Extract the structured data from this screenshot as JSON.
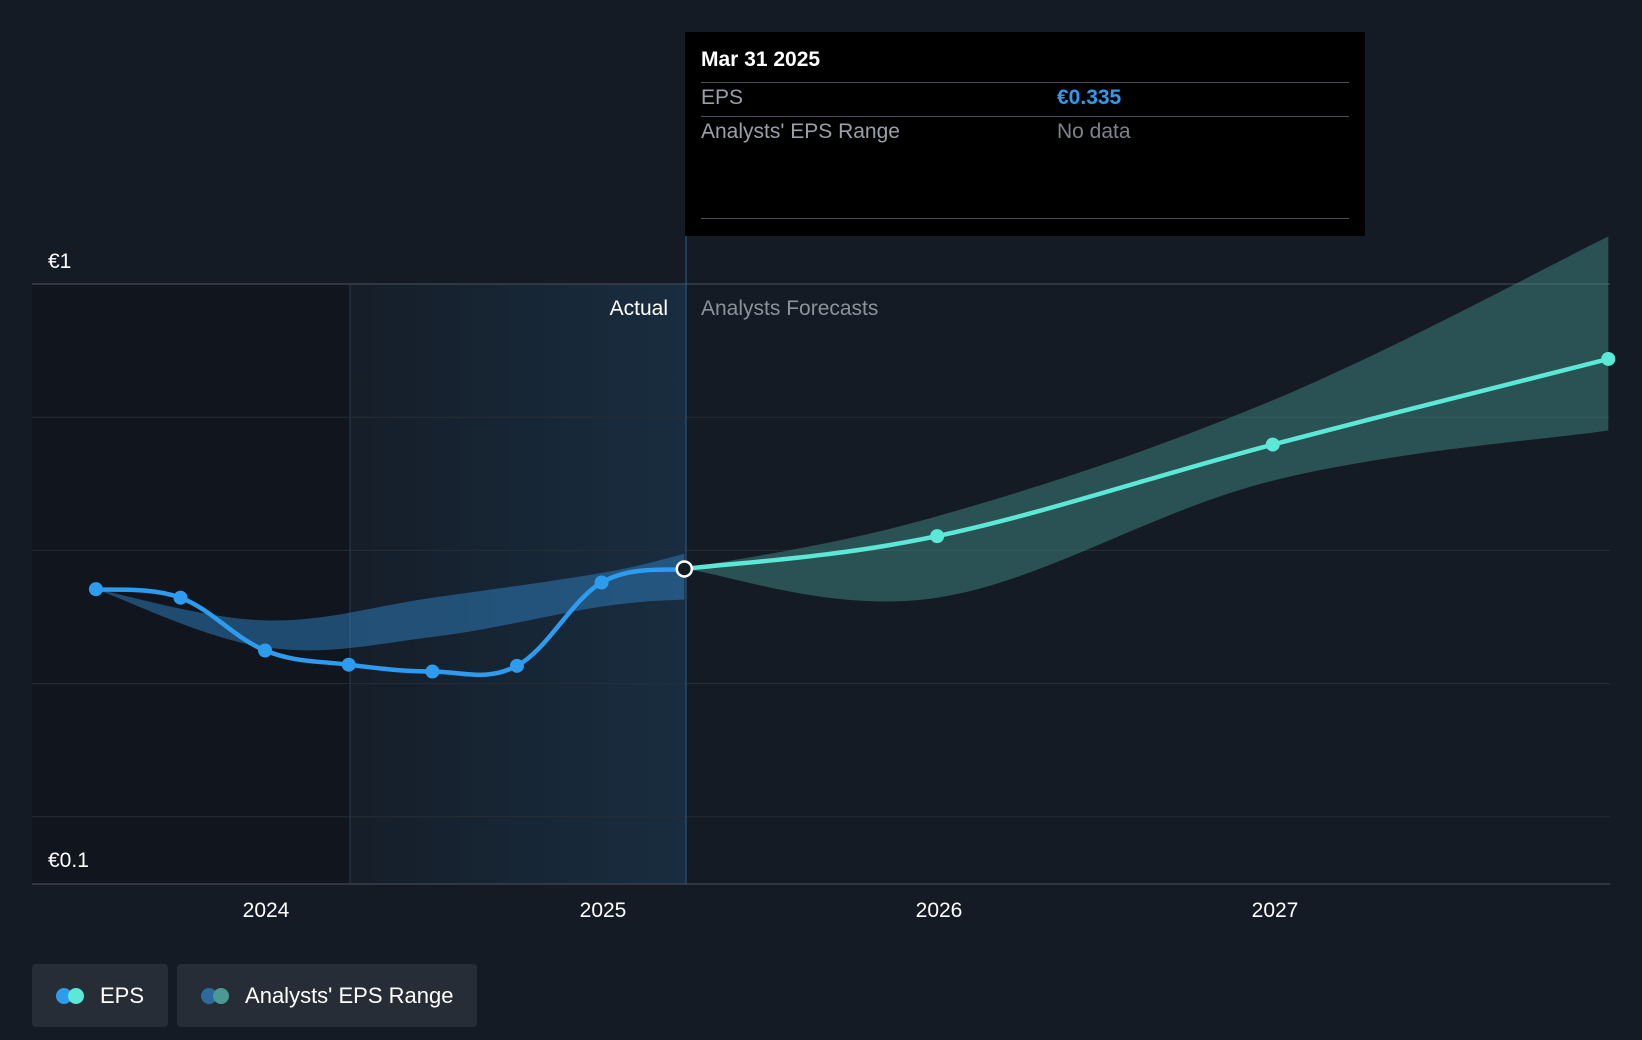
{
  "colors": {
    "background": "#151b24",
    "actual": "#2d9cee",
    "forecast": "#5ce8d6",
    "range_actual": "#2d78b4",
    "range_forecast": "#3f8a84"
  },
  "tooltip": {
    "date": "Mar 31 2025",
    "eps_label": "EPS",
    "eps_value": "€0.335",
    "range_label": "Analysts' EPS Range",
    "range_value": "No data"
  },
  "legend": {
    "items": [
      {
        "label": "EPS",
        "icon": "eps-dot-icon"
      },
      {
        "label": "Analysts' EPS Range",
        "icon": "range-dot-icon"
      }
    ]
  },
  "chart_data": {
    "type": "line",
    "title": "",
    "xlabel": "",
    "ylabel": "",
    "y_scale": "log",
    "ylim": [
      0.1,
      1
    ],
    "y_tick_labels": [
      "€1",
      "€0.1"
    ],
    "x_tick_labels": [
      "2024",
      "2025",
      "2026",
      "2027"
    ],
    "region_labels": {
      "actual": "Actual",
      "forecast": "Analysts Forecasts"
    },
    "series": [
      {
        "name": "EPS",
        "segment": "actual",
        "x": [
          "2023-06-30",
          "2023-09-30",
          "2023-12-31",
          "2024-03-31",
          "2024-06-30",
          "2024-09-30",
          "2024-12-31",
          "2025-03-31"
        ],
        "y": [
          0.31,
          0.3,
          0.245,
          0.232,
          0.226,
          0.231,
          0.318,
          0.335
        ]
      },
      {
        "name": "EPS",
        "segment": "forecast",
        "x": [
          "2025-03-31",
          "2025-12-31",
          "2026-12-31",
          "2027-12-31"
        ],
        "y": [
          0.335,
          0.38,
          0.54,
          0.75
        ]
      }
    ],
    "range_actual": {
      "x": [
        "2023-06-30",
        "2023-12-31",
        "2024-06-30",
        "2024-12-31",
        "2025-03-31"
      ],
      "upper": [
        0.31,
        0.275,
        0.3,
        0.33,
        0.355
      ],
      "lower": [
        0.31,
        0.248,
        0.258,
        0.29,
        0.298
      ]
    },
    "range_forecast": {
      "x": [
        "2025-03-31",
        "2025-12-31",
        "2026-12-31",
        "2027-12-31"
      ],
      "upper": [
        0.335,
        0.41,
        0.64,
        1.2
      ],
      "lower": [
        0.335,
        0.3,
        0.47,
        0.57
      ]
    },
    "grid": true,
    "legend_position": "bottom-left"
  }
}
